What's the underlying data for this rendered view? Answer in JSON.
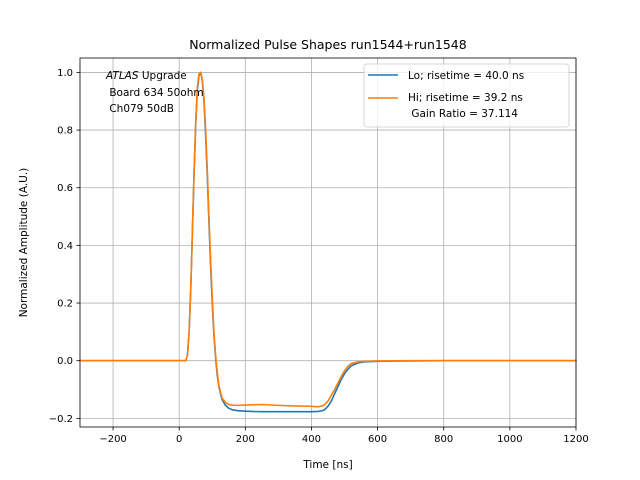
{
  "chart_data": {
    "type": "line",
    "title": "Normalized Pulse Shapes run1544+run1548",
    "xlabel": "Time [ns]",
    "ylabel": "Normalized Amplitude (A.U.)",
    "xlim": [
      -300,
      1200
    ],
    "ylim": [
      -0.23,
      1.05
    ],
    "xticks": [
      -200,
      0,
      200,
      400,
      600,
      800,
      1000,
      1200
    ],
    "xtick_labels": [
      "−200",
      "0",
      "200",
      "400",
      "600",
      "800",
      "1000",
      "1200"
    ],
    "yticks": [
      -0.2,
      0.0,
      0.2,
      0.4,
      0.6,
      0.8,
      1.0
    ],
    "ytick_labels": [
      "−0.2",
      "0.0",
      "0.2",
      "0.4",
      "0.6",
      "0.8",
      "1.0"
    ],
    "grid": true,
    "legend_position": "top-right",
    "annotation": {
      "atlas": "ATLAS",
      "upgrade": " Upgrade",
      "line2": " Board 634 50ohm",
      "line3": " Ch079 50dB"
    },
    "legend": [
      {
        "line1": "Lo; risetime = 40.0 ns",
        "line2": ""
      },
      {
        "line1": "Hi; risetime = 39.2 ns",
        "line2": " Gain Ratio = 37.114"
      }
    ],
    "series": [
      {
        "name": "Lo; risetime = 40.0 ns",
        "color": "#1f77b4",
        "x": [
          -300,
          0,
          20,
          25,
          30,
          35,
          40,
          45,
          50,
          55,
          60,
          65,
          70,
          75,
          80,
          85,
          90,
          95,
          100,
          105,
          110,
          115,
          120,
          125,
          130,
          140,
          150,
          160,
          170,
          180,
          200,
          220,
          250,
          300,
          350,
          400,
          420,
          430,
          440,
          450,
          460,
          470,
          480,
          490,
          500,
          510,
          520,
          540,
          560,
          600,
          700,
          800,
          900,
          1000,
          1100,
          1200
        ],
        "y": [
          0,
          0,
          0,
          0.02,
          0.1,
          0.25,
          0.45,
          0.65,
          0.82,
          0.94,
          0.99,
          1.0,
          0.97,
          0.9,
          0.78,
          0.64,
          0.48,
          0.33,
          0.2,
          0.09,
          0.01,
          -0.05,
          -0.09,
          -0.115,
          -0.135,
          -0.155,
          -0.165,
          -0.17,
          -0.172,
          -0.174,
          -0.175,
          -0.176,
          -0.177,
          -0.177,
          -0.177,
          -0.177,
          -0.176,
          -0.174,
          -0.17,
          -0.158,
          -0.14,
          -0.115,
          -0.09,
          -0.065,
          -0.045,
          -0.03,
          -0.018,
          -0.008,
          -0.004,
          -0.002,
          -0.001,
          0,
          0,
          0,
          0,
          0
        ]
      },
      {
        "name": "Hi; risetime = 39.2 ns",
        "color": "#ff7f0e",
        "x": [
          -300,
          0,
          20,
          25,
          30,
          35,
          40,
          45,
          50,
          55,
          60,
          65,
          70,
          75,
          80,
          85,
          90,
          95,
          100,
          105,
          110,
          115,
          120,
          125,
          130,
          140,
          150,
          160,
          170,
          180,
          200,
          220,
          250,
          300,
          350,
          400,
          410,
          420,
          430,
          440,
          450,
          460,
          470,
          480,
          490,
          500,
          510,
          520,
          540,
          560,
          600,
          700,
          800,
          900,
          1000,
          1100,
          1200
        ],
        "y": [
          0,
          0,
          0,
          0.02,
          0.1,
          0.25,
          0.45,
          0.66,
          0.83,
          0.95,
          0.995,
          1.0,
          0.975,
          0.91,
          0.8,
          0.66,
          0.5,
          0.35,
          0.22,
          0.1,
          0.02,
          -0.04,
          -0.085,
          -0.11,
          -0.13,
          -0.145,
          -0.152,
          -0.154,
          -0.155,
          -0.155,
          -0.154,
          -0.153,
          -0.152,
          -0.155,
          -0.157,
          -0.158,
          -0.159,
          -0.16,
          -0.158,
          -0.152,
          -0.14,
          -0.12,
          -0.1,
          -0.078,
          -0.055,
          -0.035,
          -0.02,
          -0.01,
          -0.004,
          -0.002,
          -0.001,
          0,
          0,
          0,
          0,
          0,
          0
        ]
      }
    ]
  }
}
